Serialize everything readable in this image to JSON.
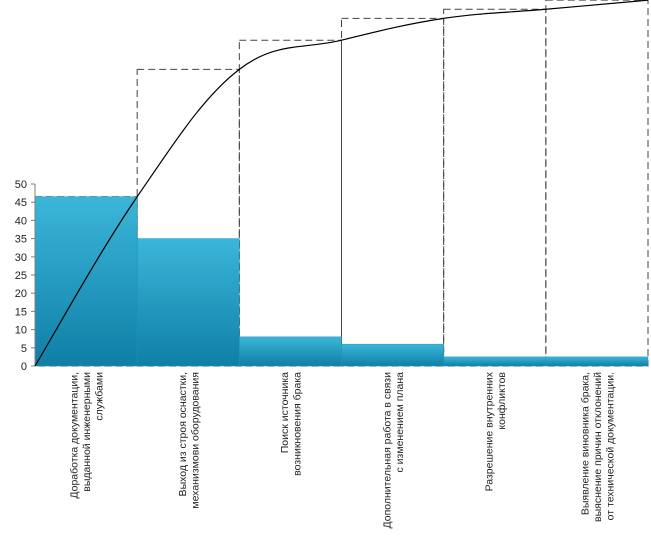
{
  "chart_data": {
    "type": "bar",
    "title": "",
    "xlabel": "",
    "ylabel": "",
    "ylim": [
      0,
      50
    ],
    "y_ticks": [
      0,
      5,
      10,
      15,
      20,
      25,
      30,
      35,
      40,
      45,
      50
    ],
    "grid": false,
    "legend": "none",
    "categories": [
      [
        "Доработка документации,",
        "выданной инженерными",
        "службами"
      ],
      [
        "Выход из строя оснастки,",
        "механизмови оборудования"
      ],
      [
        "Поиск источника",
        "возникновения брака"
      ],
      [
        "Дополнительная работа в связи",
        "с изменением плана"
      ],
      [
        "Разрешение внутренних",
        "конфликтов"
      ],
      [
        "Выявление виновника брака,",
        "выяснение причин отклонений",
        "от технической документации."
      ]
    ],
    "values": [
      46.5,
      35,
      8,
      6,
      2.5,
      2.5
    ],
    "cumulative_percent": [
      46.5,
      81.5,
      89.5,
      95.5,
      98,
      100.5
    ],
    "colors": {
      "bar_top": "#3bb6d9",
      "bar_bottom": "#0f7fa6",
      "axis": "#7f7f7f",
      "cumulative_box": "#444444",
      "curve": "#000000"
    }
  }
}
